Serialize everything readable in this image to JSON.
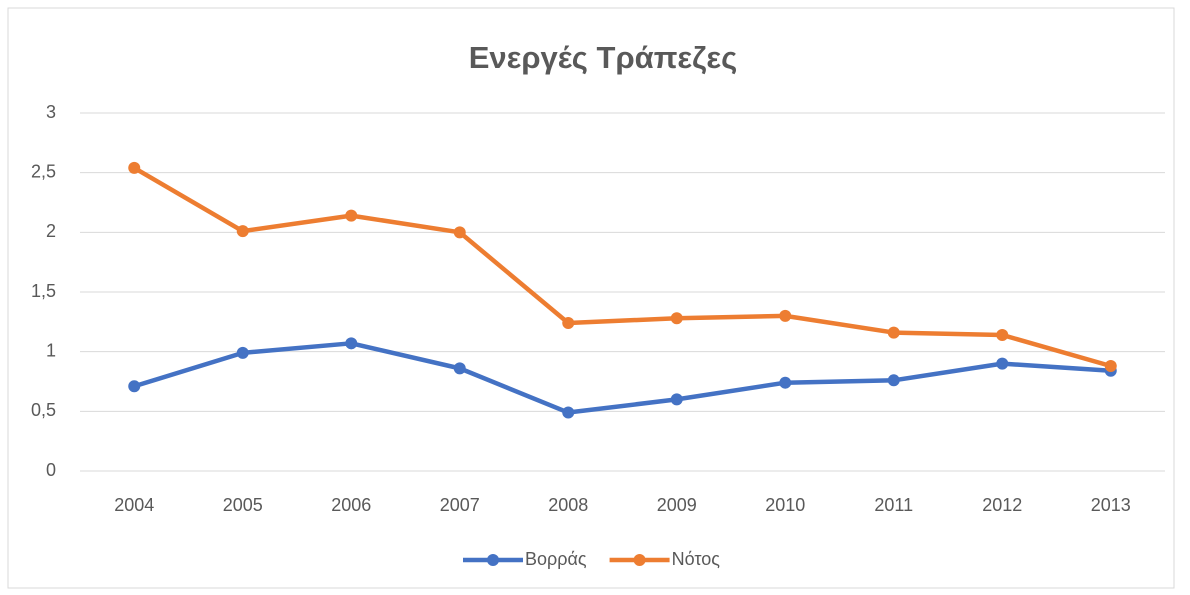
{
  "chart_data": {
    "type": "line",
    "title": "Ενεργές Τράπεζες",
    "categories": [
      "2004",
      "2005",
      "2006",
      "2007",
      "2008",
      "2009",
      "2010",
      "2011",
      "2012",
      "2013"
    ],
    "series": [
      {
        "name": "Βορράς",
        "color": "#4472c4",
        "values": [
          0.71,
          0.99,
          1.07,
          0.86,
          0.49,
          0.6,
          0.74,
          0.76,
          0.9,
          0.84
        ]
      },
      {
        "name": "Νότος",
        "color": "#ed7d31",
        "values": [
          2.54,
          2.01,
          2.14,
          2.0,
          1.24,
          1.28,
          1.3,
          1.16,
          1.14,
          0.88
        ]
      }
    ],
    "ylim": [
      0,
      3
    ],
    "yticks": [
      0,
      {
        "value": 0.5,
        "label": "0,5"
      },
      1,
      {
        "value": 1.5,
        "label": "1,5"
      },
      2,
      {
        "value": 2.5,
        "label": "2,5"
      },
      3
    ],
    "grid": true,
    "legend": "bottom"
  }
}
